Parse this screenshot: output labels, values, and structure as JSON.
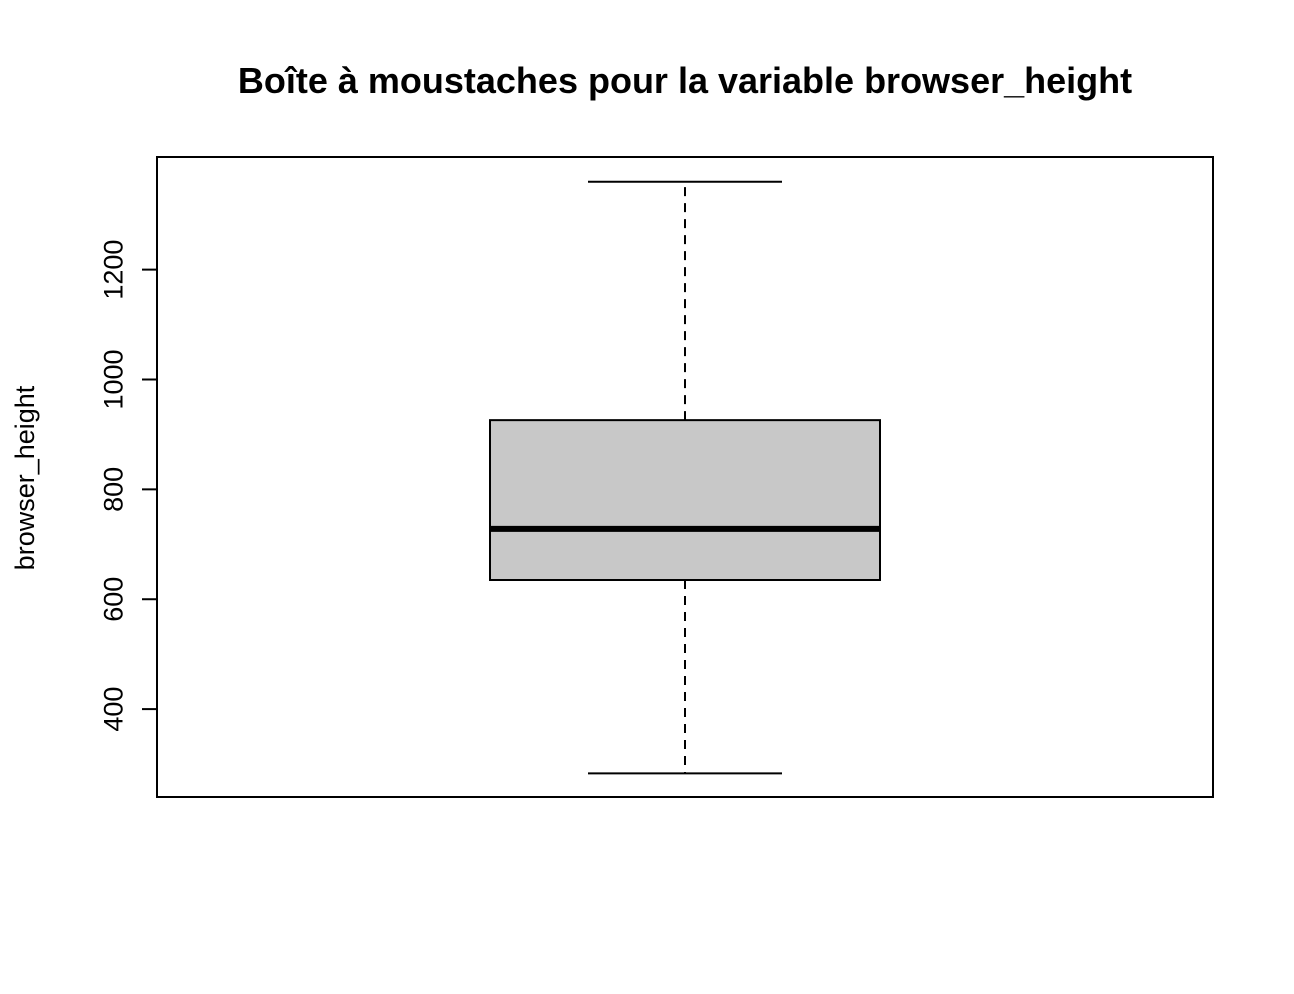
{
  "chart_data": {
    "type": "boxplot",
    "title": "Boîte à moustaches pour la variable browser_height",
    "ylabel": "browser_height",
    "xlabel": "",
    "ylim": [
      240,
      1405
    ],
    "yticks": [
      400,
      600,
      800,
      1000,
      1200
    ],
    "ytick_labels": [
      "400",
      "600",
      "800",
      "1000",
      "1200"
    ],
    "box": {
      "lower_whisker": 283,
      "q1": 635,
      "median": 728,
      "q3": 926,
      "upper_whisker": 1360
    },
    "grid": false,
    "colors": {
      "box_fill": "#c8c8c8",
      "stroke": "#000000"
    }
  }
}
